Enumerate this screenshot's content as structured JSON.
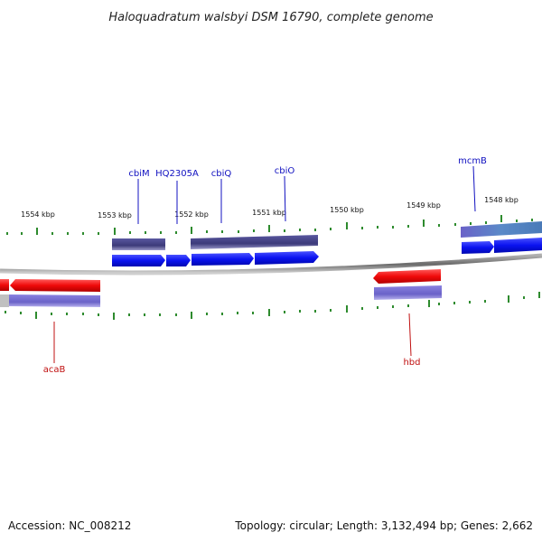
{
  "title": "Haloquadratum walsbyi DSM 16790, complete genome",
  "footer": {
    "accession": "Accession: NC_008212",
    "topology": "Topology: circular; Length: 3,132,494 bp; Genes: 2,662"
  },
  "colors": {
    "forward_gene": "#0a12f0",
    "reverse_gene": "#f00a0a",
    "cds_forward": "#3c3a7a",
    "cds_reverse": "#6a62c8",
    "backbone": "#888888",
    "tick": "#2e8b2e"
  },
  "scale": {
    "labels": [
      "1554 kbp",
      "1553 kbp",
      "1552 kbp",
      "1551 kbp",
      "1550 kbp",
      "1549 kbp",
      "1548 kbp"
    ]
  },
  "genes": [
    {
      "name": "cbiM",
      "strand": "forward"
    },
    {
      "name": "HQ2305A",
      "strand": "forward"
    },
    {
      "name": "cbiQ",
      "strand": "forward"
    },
    {
      "name": "cbiO",
      "strand": "forward"
    },
    {
      "name": "mcmB",
      "strand": "forward"
    },
    {
      "name": "acaB",
      "strand": "reverse"
    },
    {
      "name": "hbd",
      "strand": "reverse"
    }
  ]
}
